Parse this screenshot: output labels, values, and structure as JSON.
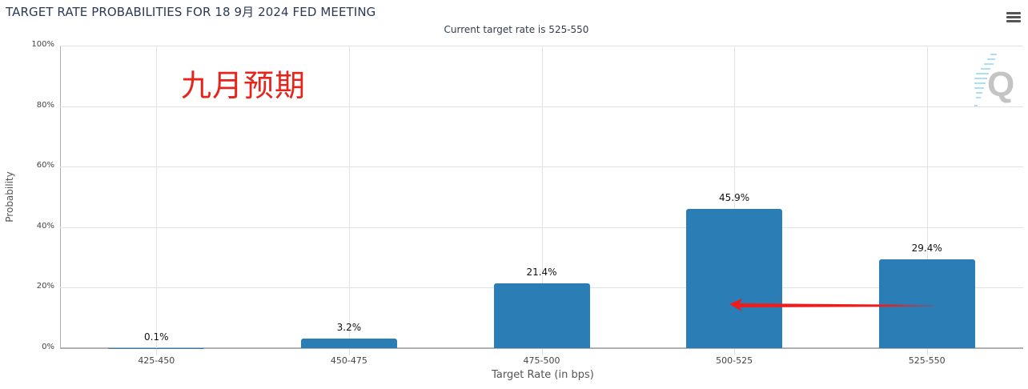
{
  "header": {
    "title": "TARGET RATE PROBABILITIES FOR 18 9月 2024 FED MEETING",
    "subtitle": "Current target rate is 525-550",
    "menu_icon": "hamburger-menu-icon"
  },
  "annotation": {
    "text": "九月预期",
    "color": "#e8231c",
    "arrow": "red arrow pointing left from 525-550 toward 500-525 bar"
  },
  "watermark": {
    "icon": "quikstrike-q-logo-icon",
    "letter": "Q"
  },
  "axes": {
    "y_label": "Probability",
    "x_label": "Target Rate (in bps)",
    "y_ticks": [
      "0%",
      "20%",
      "40%",
      "60%",
      "80%",
      "100%"
    ]
  },
  "bars": [
    {
      "category": "425-450",
      "value": 0.1,
      "label": "0.1%"
    },
    {
      "category": "450-475",
      "value": 3.2,
      "label": "3.2%"
    },
    {
      "category": "475-500",
      "value": 21.4,
      "label": "21.4%"
    },
    {
      "category": "500-525",
      "value": 45.9,
      "label": "45.9%"
    },
    {
      "category": "525-550",
      "value": 29.4,
      "label": "29.4%"
    }
  ],
  "colors": {
    "bar": "#2a7db5",
    "annotation": "#e8231c",
    "title": "#2a3a55"
  },
  "chart_data": {
    "type": "bar",
    "title": "TARGET RATE PROBABILITIES FOR 18 9月 2024 FED MEETING",
    "subtitle": "Current target rate is 525-550",
    "categories": [
      "425-450",
      "450-475",
      "475-500",
      "500-525",
      "525-550"
    ],
    "values": [
      0.1,
      3.2,
      21.4,
      45.9,
      29.4
    ],
    "data_labels": [
      "0.1%",
      "3.2%",
      "21.4%",
      "45.9%",
      "29.4%"
    ],
    "xlabel": "Target Rate (in bps)",
    "ylabel": "Probability",
    "ylim": [
      0,
      100
    ],
    "y_ticks": [
      0,
      20,
      40,
      60,
      80,
      100
    ],
    "y_tick_format": "%",
    "grid": true,
    "legend": "none",
    "annotations": [
      "九月预期",
      "red arrow from 525-550 area pointing to 500-525 bar"
    ]
  }
}
